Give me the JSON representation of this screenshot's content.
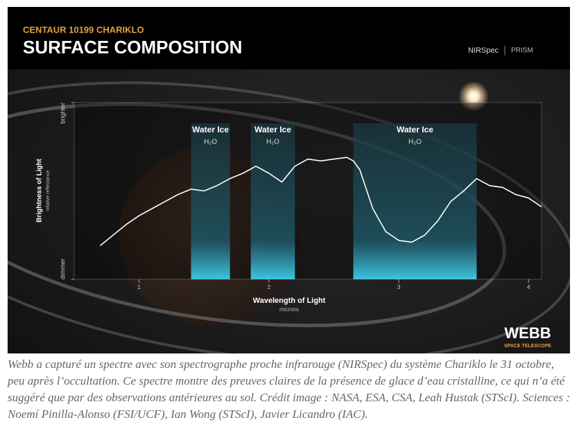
{
  "chart_data": {
    "type": "line",
    "subtitle": "CENTAUR 10199 CHARIKLO",
    "title": "SURFACE COMPOSITION",
    "instrument": "NIRSpec",
    "mode": "PRISM",
    "xlabel": "Wavelength of Light",
    "xlabel_unit": "microns",
    "ylabel": "Brightness of Light",
    "ylabel_unit": "relative reflectance",
    "xlim": [
      0.5,
      4.1
    ],
    "xticks": [
      1,
      2,
      3,
      4
    ],
    "ylim": [
      0,
      1
    ],
    "yticks": [
      {
        "value": 0,
        "label": "dimmer"
      },
      {
        "value": 1,
        "label": "brighter"
      }
    ],
    "color": "#ffffff",
    "x": [
      0.7,
      0.8,
      0.9,
      1.0,
      1.1,
      1.2,
      1.3,
      1.4,
      1.5,
      1.6,
      1.7,
      1.8,
      1.9,
      2.0,
      2.1,
      2.2,
      2.3,
      2.4,
      2.5,
      2.6,
      2.65,
      2.7,
      2.8,
      2.9,
      3.0,
      3.1,
      3.2,
      3.3,
      3.4,
      3.5,
      3.6,
      3.7,
      3.8,
      3.9,
      4.0,
      4.1
    ],
    "values": [
      0.19,
      0.25,
      0.31,
      0.36,
      0.4,
      0.44,
      0.48,
      0.51,
      0.5,
      0.53,
      0.57,
      0.6,
      0.64,
      0.6,
      0.55,
      0.64,
      0.68,
      0.67,
      0.68,
      0.69,
      0.67,
      0.62,
      0.4,
      0.27,
      0.22,
      0.21,
      0.25,
      0.33,
      0.44,
      0.5,
      0.57,
      0.53,
      0.52,
      0.48,
      0.46,
      0.41
    ],
    "annotations": [
      {
        "label": "Water Ice",
        "formula": "H₂O",
        "x_range": [
          1.4,
          1.7
        ]
      },
      {
        "label": "Water Ice",
        "formula": "H₂O",
        "x_range": [
          1.86,
          2.2
        ]
      },
      {
        "label": "Water Ice",
        "formula": "H₂O",
        "x_range": [
          2.65,
          3.6
        ]
      }
    ],
    "logo": "WEBB",
    "logo_sub": "SPACE TELESCOPE"
  },
  "caption": "Webb a capturé un spectre avec son spectrographe proche infrarouge (NIRSpec) du système Chariklo le 31 octobre, peu après l’occultation. Ce spectre montre des preuves claires de la présence de glace d’eau cristalline, ce qui n’a été suggéré que par des observations antérieures au sol. Crédit image : NASA, ESA, CSA, Leah Hustak (STScI). Sciences : Noemí Pinilla-Alonso (FSI/UCF), Ian Wong (STScI), Javier Licandro (IAC)."
}
